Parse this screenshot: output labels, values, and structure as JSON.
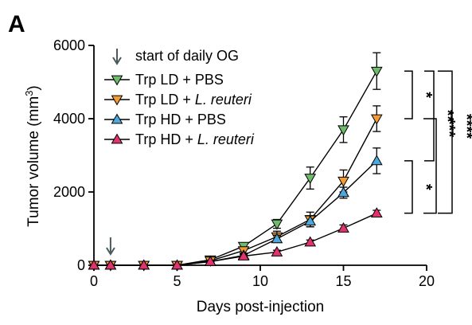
{
  "panel_label": "A",
  "chart_data": {
    "type": "line",
    "xlabel": "Days post-injection",
    "ylabel_main": "Tumor volume (mm",
    "ylabel_sup": "3",
    "ylabel_close": ")",
    "xlim": [
      0,
      20
    ],
    "ylim": [
      0,
      6000
    ],
    "xticks": [
      0,
      5,
      10,
      15,
      20
    ],
    "yticks": [
      0,
      2000,
      4000,
      6000
    ],
    "x": [
      0,
      1,
      3,
      5,
      7,
      9,
      11,
      13,
      15,
      17
    ],
    "series": [
      {
        "name_parts": [
          "Trp LD + PBS",
          ""
        ],
        "color": "#6dbb6b",
        "marker": "triangle-down",
        "values": [
          0,
          0,
          0,
          0,
          150,
          520,
          1130,
          2380,
          3700,
          5300
        ],
        "errors": [
          0,
          0,
          0,
          0,
          40,
          80,
          120,
          300,
          350,
          500
        ]
      },
      {
        "name_parts": [
          "Trp LD + ",
          "L. reuteri"
        ],
        "color": "#f39c33",
        "marker": "triangle-down",
        "values": [
          0,
          0,
          0,
          0,
          120,
          400,
          780,
          1250,
          2300,
          4000
        ],
        "errors": [
          0,
          0,
          0,
          0,
          40,
          80,
          150,
          200,
          300,
          350
        ]
      },
      {
        "name_parts": [
          "Trp HD + PBS",
          ""
        ],
        "color": "#4fa8dc",
        "marker": "triangle-up",
        "values": [
          0,
          0,
          0,
          0,
          100,
          270,
          720,
          1200,
          1980,
          2850
        ],
        "errors": [
          0,
          0,
          0,
          0,
          30,
          60,
          100,
          150,
          150,
          350
        ]
      },
      {
        "name_parts": [
          "Trp HD + ",
          "L. reuteri"
        ],
        "color": "#e2336f",
        "marker": "triangle-up",
        "values": [
          0,
          0,
          0,
          0,
          100,
          250,
          360,
          630,
          1010,
          1420
        ],
        "errors": [
          0,
          0,
          0,
          0,
          20,
          40,
          50,
          60,
          90,
          80
        ]
      }
    ],
    "start_label": "start of daily OG",
    "start_day": 1,
    "arrow_color": "#4a5a5a",
    "significance": [
      "*",
      "**",
      "*",
      "***",
      "****"
    ],
    "legend_position": "upper-left"
  }
}
